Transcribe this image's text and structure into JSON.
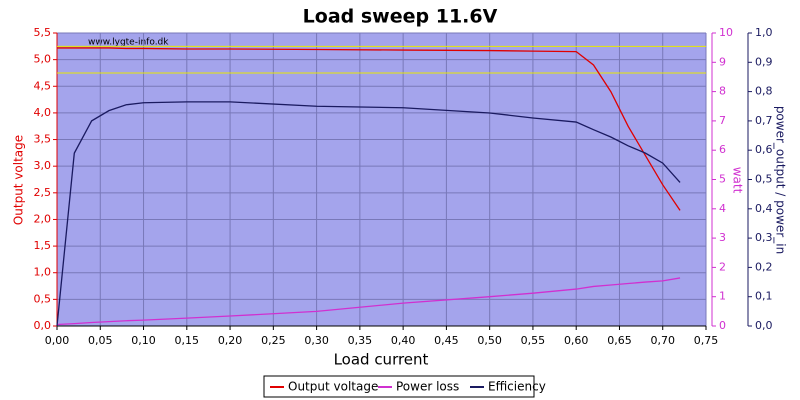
{
  "chart_data": {
    "type": "line",
    "title": "Load sweep 11.6V",
    "watermark": "www.lygte-info.dk",
    "xlabel": "Load current",
    "ylabel": "Output voltage",
    "y2label": "watt",
    "y3label": "power_output / power_in",
    "x": [
      0,
      0.02,
      0.04,
      0.06,
      0.08,
      0.1,
      0.15,
      0.2,
      0.3,
      0.4,
      0.5,
      0.55,
      0.6,
      0.62,
      0.64,
      0.66,
      0.68,
      0.7,
      0.72
    ],
    "series": [
      {
        "name": "Output voltage",
        "color": "#e00000",
        "axis": "y",
        "values": [
          5.22,
          5.22,
          5.22,
          5.22,
          5.21,
          5.21,
          5.2,
          5.2,
          5.19,
          5.18,
          5.17,
          5.16,
          5.15,
          4.9,
          4.4,
          3.75,
          3.2,
          2.65,
          2.17
        ]
      },
      {
        "name": "Power loss",
        "color": "#d030d0",
        "axis": "y2",
        "values": [
          0.05,
          0.08,
          0.12,
          0.15,
          0.18,
          0.2,
          0.27,
          0.34,
          0.5,
          0.78,
          1.0,
          1.12,
          1.26,
          1.35,
          1.4,
          1.45,
          1.5,
          1.54,
          1.64
        ]
      },
      {
        "name": "Efficiency",
        "color": "#1a1a60",
        "axis": "y3",
        "values": [
          0.0,
          0.59,
          0.7,
          0.735,
          0.755,
          0.762,
          0.765,
          0.765,
          0.75,
          0.745,
          0.727,
          0.71,
          0.696,
          0.67,
          0.645,
          0.615,
          0.59,
          0.556,
          0.49
        ]
      }
    ],
    "reference_lines": [
      {
        "value": 5.25,
        "color": "#e8e800"
      },
      {
        "value": 4.75,
        "color": "#e8e800"
      }
    ],
    "xlim": [
      0,
      0.75
    ],
    "xticks": [
      {
        "value": 0,
        "label": "0,00"
      },
      {
        "value": 0.05,
        "label": "0,05"
      },
      {
        "value": 0.1,
        "label": "0,10"
      },
      {
        "value": 0.15,
        "label": "0,15"
      },
      {
        "value": 0.2,
        "label": "0,20"
      },
      {
        "value": 0.25,
        "label": "0,25"
      },
      {
        "value": 0.3,
        "label": "0,30"
      },
      {
        "value": 0.35,
        "label": "0,35"
      },
      {
        "value": 0.4,
        "label": "0,40"
      },
      {
        "value": 0.45,
        "label": "0,45"
      },
      {
        "value": 0.5,
        "label": "0,50"
      },
      {
        "value": 0.55,
        "label": "0,55"
      },
      {
        "value": 0.6,
        "label": "0,60"
      },
      {
        "value": 0.65,
        "label": "0,65"
      },
      {
        "value": 0.7,
        "label": "0,70"
      },
      {
        "value": 0.75,
        "label": "0,75"
      }
    ],
    "ylim": [
      0,
      5.5
    ],
    "yticks": [
      {
        "value": 0,
        "label": "0,0"
      },
      {
        "value": 0.5,
        "label": "0,5"
      },
      {
        "value": 1,
        "label": "1,0"
      },
      {
        "value": 1.5,
        "label": "1,5"
      },
      {
        "value": 2,
        "label": "2,0"
      },
      {
        "value": 2.5,
        "label": "2,5"
      },
      {
        "value": 3,
        "label": "3,0"
      },
      {
        "value": 3.5,
        "label": "3,5"
      },
      {
        "value": 4,
        "label": "4,0"
      },
      {
        "value": 4.5,
        "label": "4,5"
      },
      {
        "value": 5,
        "label": "5,0"
      },
      {
        "value": 5.5,
        "label": "5,5"
      }
    ],
    "y2lim": [
      0,
      10
    ],
    "y2ticks": [
      0,
      1,
      2,
      3,
      4,
      5,
      6,
      7,
      8,
      9,
      10
    ],
    "y3lim": [
      0,
      1
    ],
    "y3ticks": [
      {
        "value": 0,
        "label": "0,0"
      },
      {
        "value": 0.1,
        "label": "0,1"
      },
      {
        "value": 0.2,
        "label": "0,2"
      },
      {
        "value": 0.3,
        "label": "0,3"
      },
      {
        "value": 0.4,
        "label": "0,4"
      },
      {
        "value": 0.5,
        "label": "0,5"
      },
      {
        "value": 0.6,
        "label": "0,6"
      },
      {
        "value": 0.7,
        "label": "0,7"
      },
      {
        "value": 0.8,
        "label": "0,8"
      },
      {
        "value": 0.9,
        "label": "0,9"
      },
      {
        "value": 1,
        "label": "1,0"
      }
    ],
    "grid": true,
    "legend": "bottom"
  }
}
